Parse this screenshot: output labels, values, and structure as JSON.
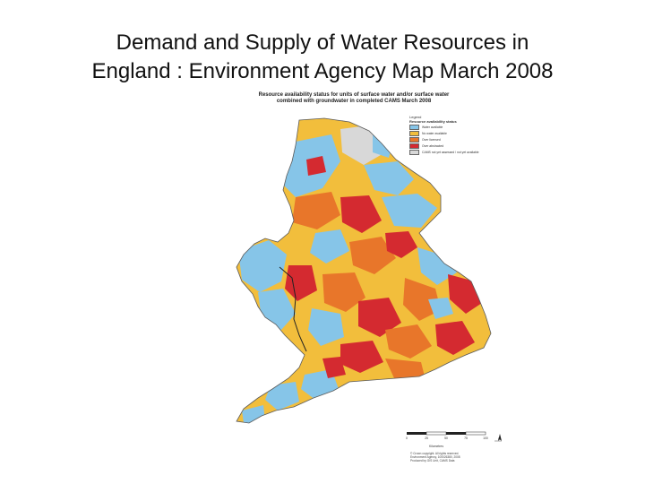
{
  "slide": {
    "title_line1": "Demand and Supply of Water Resources in",
    "title_line2": "England : Environment Agency Map March 2008"
  },
  "map": {
    "heading_line1": "Resource availability status for units of surface water and/or surface water",
    "heading_line2": "combined with groundwater in completed CAMS March 2008",
    "legend": {
      "heading": "Legend",
      "subheading": "Resource availability status",
      "items": [
        {
          "label": "Water available",
          "color": "#86c5e8"
        },
        {
          "label": "No water available",
          "color": "#f2be3c"
        },
        {
          "label": "Over licensed",
          "color": "#e8762a"
        },
        {
          "label": "Over abstracted",
          "color": "#d42a30"
        },
        {
          "label": "CAMS not yet assessed / not yet available",
          "color": "#d8d8d8"
        }
      ]
    },
    "scale_bar": {
      "ticks": [
        "0",
        "25",
        "50",
        "75",
        "100"
      ],
      "unit": "Kilometres"
    },
    "north_arrow": "N",
    "credits": [
      "© Crown copyright. All rights reserved.",
      "Environment Agency, 100026380, 2008",
      "Produced by GIS Unit, CAMS Data"
    ]
  }
}
